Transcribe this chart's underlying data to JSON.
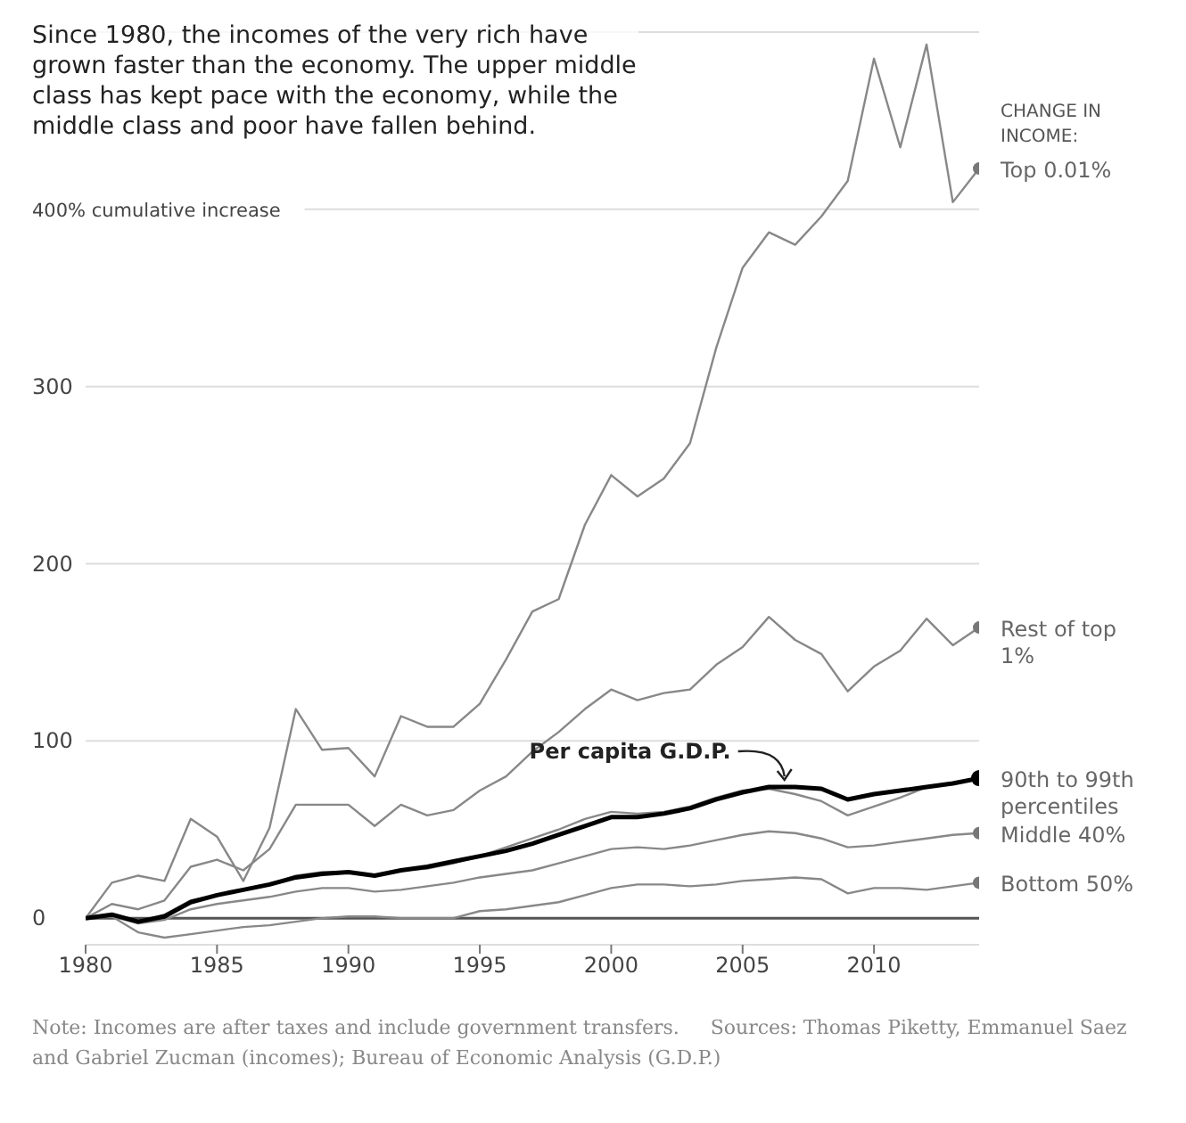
{
  "chart_data": {
    "type": "line",
    "title": "Since 1980, the incomes of the very rich have grown faster than the economy. The upper middle class has kept pace with the economy, while the middle class and poor have fallen behind.",
    "legend_title": "CHANGE IN INCOME:",
    "x": [
      1980,
      1981,
      1982,
      1983,
      1984,
      1985,
      1986,
      1987,
      1988,
      1989,
      1990,
      1991,
      1992,
      1993,
      1994,
      1995,
      1996,
      1997,
      1998,
      1999,
      2000,
      2001,
      2002,
      2003,
      2004,
      2005,
      2006,
      2007,
      2008,
      2009,
      2010,
      2011,
      2012,
      2013,
      2014
    ],
    "series": [
      {
        "name": "Top 0.01%",
        "color": "#888888",
        "values": [
          0,
          20,
          24,
          21,
          56,
          46,
          21,
          51,
          118,
          95,
          96,
          80,
          114,
          108,
          108,
          121,
          146,
          173,
          180,
          222,
          250,
          238,
          248,
          268,
          322,
          367,
          387,
          380,
          396,
          416,
          485,
          435,
          493,
          404,
          423
        ]
      },
      {
        "name": "Rest of top 1%",
        "color": "#888888",
        "values": [
          0,
          8,
          5,
          10,
          29,
          33,
          27,
          39,
          64,
          64,
          64,
          52,
          64,
          58,
          61,
          72,
          80,
          94,
          105,
          118,
          129,
          123,
          127,
          129,
          143,
          153,
          170,
          157,
          149,
          128,
          142,
          151,
          169,
          154,
          164
        ]
      },
      {
        "name": "90th to 99th percentiles",
        "color": "#888888",
        "values": [
          0,
          2,
          -2,
          2,
          10,
          13,
          16,
          19,
          24,
          26,
          26,
          24,
          27,
          28,
          31,
          35,
          40,
          45,
          50,
          56,
          60,
          59,
          60,
          63,
          68,
          72,
          73,
          70,
          66,
          58,
          63,
          68,
          74,
          76,
          79
        ]
      },
      {
        "name": "Middle 40%",
        "color": "#888888",
        "values": [
          0,
          1,
          -3,
          -1,
          5,
          8,
          10,
          12,
          15,
          17,
          17,
          15,
          16,
          18,
          20,
          23,
          25,
          27,
          31,
          35,
          39,
          40,
          39,
          41,
          44,
          47,
          49,
          48,
          45,
          40,
          41,
          43,
          45,
          47,
          48
        ]
      },
      {
        "name": "Bottom 50%",
        "color": "#888888",
        "values": [
          0,
          1,
          -8,
          -11,
          -9,
          -7,
          -5,
          -4,
          -2,
          0,
          1,
          1,
          0,
          0,
          0,
          4,
          5,
          7,
          9,
          13,
          17,
          19,
          19,
          18,
          19,
          21,
          22,
          23,
          22,
          14,
          17,
          17,
          16,
          18,
          20
        ]
      },
      {
        "color": "#000000",
        "values": [
          0,
          2,
          -2,
          1,
          9,
          13,
          16,
          19,
          23,
          25,
          26,
          24,
          27,
          29,
          32,
          35,
          38,
          42,
          47,
          52,
          57,
          57,
          59,
          62,
          67,
          71,
          74,
          74,
          73,
          67,
          70,
          72,
          74,
          76,
          79
        ]
      }
    ],
    "xlim": [
      1980,
      2014
    ],
    "xticks": [
      1980,
      1985,
      1990,
      1995,
      2000,
      2005,
      2010
    ],
    "ylim": [
      -15,
      500
    ],
    "yticks": [
      0,
      100,
      200,
      300,
      {
        "value": 400,
        "label": "400% cumulative increase"
      }
    ],
    "grid": "y",
    "ref_lines": [
      {
        "axis": "y",
        "value": 0,
        "color": "#555555"
      }
    ],
    "annotations": [
      {
        "text": "Per capita G.D.P.",
        "x": 2007,
        "y": 74
      },
      "Note: Incomes are after taxes and include government transfers.",
      "Sources: Thomas Piketty, Emmanuel Saez and Gabriel Zucman (incomes); Bureau of Economic Analysis (G.D.P.)"
    ]
  }
}
